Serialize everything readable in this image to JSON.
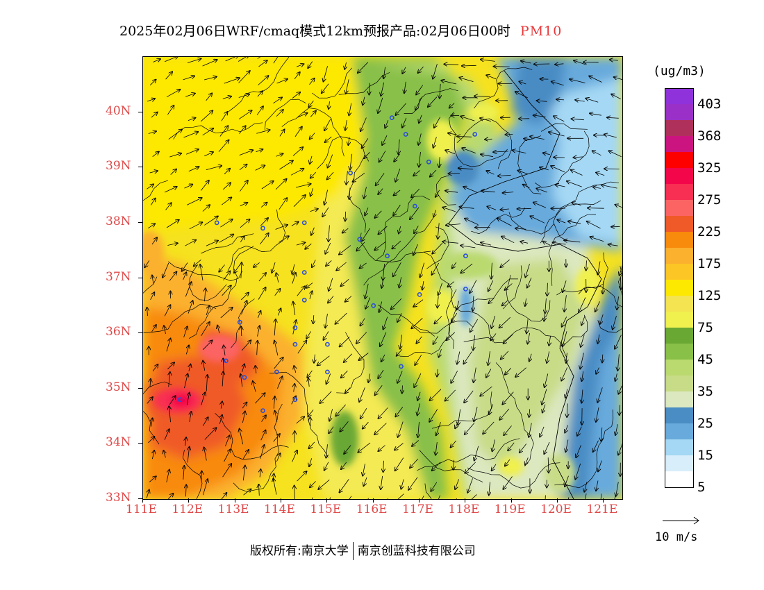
{
  "title": {
    "text": "2025年02月06日WRF/cmaq模式12km预报产品:02月06日00时",
    "pollutant": "PM10"
  },
  "axes": {
    "lat_labels": [
      "40N",
      "39N",
      "38N",
      "37N",
      "36N",
      "35N",
      "34N",
      "33N"
    ],
    "lon_labels": [
      "111E",
      "112E",
      "113E",
      "114E",
      "115E",
      "116E",
      "117E",
      "118E",
      "119E",
      "120E",
      "121E"
    ]
  },
  "colorbar": {
    "unit": "(ug/m3)",
    "bins": [
      {
        "color": "#8f32dc",
        "label": "403"
      },
      {
        "color": "#9b30c8",
        "label": ""
      },
      {
        "color": "#b0305c",
        "label": "368"
      },
      {
        "color": "#cc1480",
        "label": ""
      },
      {
        "color": "#ff0000",
        "label": "325"
      },
      {
        "color": "#f4064a",
        "label": ""
      },
      {
        "color": "#f82e52",
        "label": "275"
      },
      {
        "color": "#fc6464",
        "label": ""
      },
      {
        "color": "#f05a28",
        "label": "225"
      },
      {
        "color": "#f88a0c",
        "label": ""
      },
      {
        "color": "#fbb02e",
        "label": "175"
      },
      {
        "color": "#fcc624",
        "label": ""
      },
      {
        "color": "#fde800",
        "label": "125"
      },
      {
        "color": "#f4e452",
        "label": ""
      },
      {
        "color": "#f0f04e",
        "label": "75"
      },
      {
        "color": "#6aa834",
        "label": ""
      },
      {
        "color": "#88c048",
        "label": "45"
      },
      {
        "color": "#bada70",
        "label": ""
      },
      {
        "color": "#c8dc88",
        "label": "35"
      },
      {
        "color": "#dce8c0",
        "label": ""
      },
      {
        "color": "#4a8cc4",
        "label": "25"
      },
      {
        "color": "#68aadc",
        "label": ""
      },
      {
        "color": "#a4d8f4",
        "label": "15"
      },
      {
        "color": "#d8eefa",
        "label": ""
      },
      {
        "color": "#ffffff",
        "label": "5"
      }
    ]
  },
  "wind_reference": "10 m/s",
  "copyright": {
    "prefix": "版权所有:南京大学",
    "company": "南京创蓝科技有限公司"
  },
  "colors": {
    "label_red": "#e04848",
    "station_marker": "#2a4ed8"
  },
  "stations": [
    {
      "lon": 116.4,
      "lat": 39.9
    },
    {
      "lon": 116.7,
      "lat": 39.6
    },
    {
      "lon": 117.2,
      "lat": 39.1
    },
    {
      "lon": 118.2,
      "lat": 39.6
    },
    {
      "lon": 115.5,
      "lat": 38.9
    },
    {
      "lon": 114.5,
      "lat": 38.0
    },
    {
      "lon": 113.6,
      "lat": 37.9
    },
    {
      "lon": 112.6,
      "lat": 38.0
    },
    {
      "lon": 115.7,
      "lat": 37.7
    },
    {
      "lon": 116.9,
      "lat": 38.3
    },
    {
      "lon": 116.3,
      "lat": 37.4
    },
    {
      "lon": 118.0,
      "lat": 37.4
    },
    {
      "lon": 114.5,
      "lat": 37.1
    },
    {
      "lon": 114.5,
      "lat": 36.6
    },
    {
      "lon": 116.0,
      "lat": 36.5
    },
    {
      "lon": 117.0,
      "lat": 36.7
    },
    {
      "lon": 118.0,
      "lat": 36.8
    },
    {
      "lon": 113.1,
      "lat": 36.2
    },
    {
      "lon": 114.3,
      "lat": 36.1
    },
    {
      "lon": 114.3,
      "lat": 35.8
    },
    {
      "lon": 115.0,
      "lat": 35.8
    },
    {
      "lon": 112.8,
      "lat": 35.5
    },
    {
      "lon": 113.2,
      "lat": 35.2
    },
    {
      "lon": 113.9,
      "lat": 35.3
    },
    {
      "lon": 115.0,
      "lat": 35.3
    },
    {
      "lon": 116.6,
      "lat": 35.4
    },
    {
      "lon": 114.3,
      "lat": 34.8
    },
    {
      "lon": 113.6,
      "lat": 34.6
    },
    {
      "lon": 111.8,
      "lat": 34.8
    }
  ]
}
